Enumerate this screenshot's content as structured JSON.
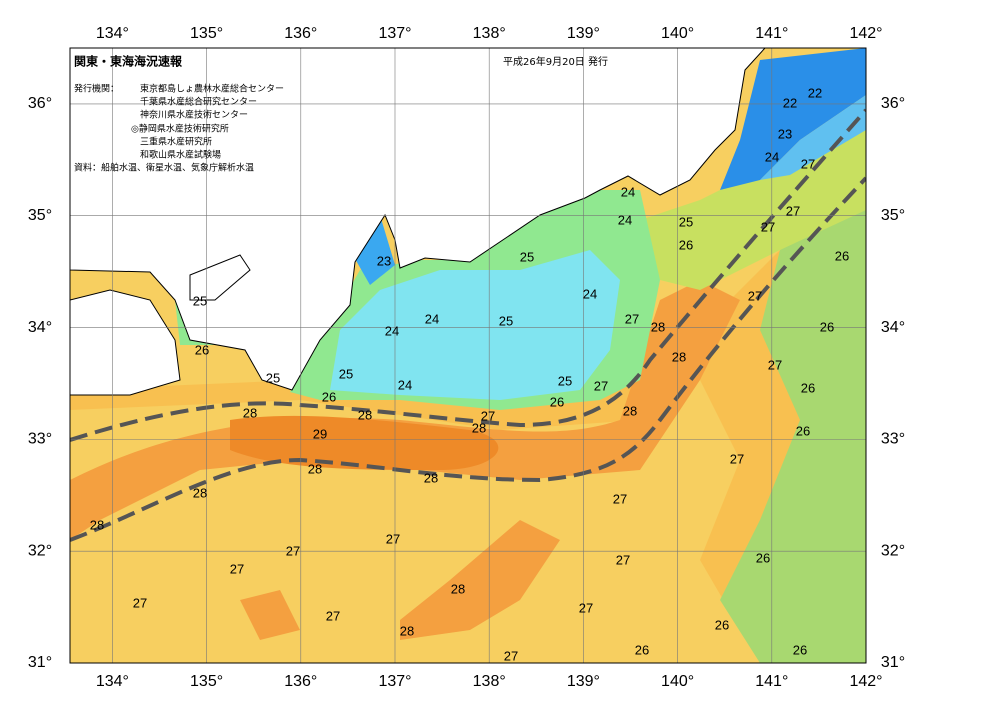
{
  "header": {
    "title": "関東・東海海況速報",
    "date": "平成26年9月20日 発行",
    "issuer_heading": "発行機関：",
    "issuers": [
      "東京都島しょ農林水産総合センター",
      "千葉県水産総合研究センター",
      "神奈川県水産技術センター",
      "◎静岡県水産技術研究所",
      "三重県水産研究所",
      "和歌山県水産試験場"
    ],
    "source": "資料：船舶水温、衛星水温、気象庁解析水温"
  },
  "map": {
    "xlim": [
      133.55,
      142
    ],
    "ylim": [
      31,
      36.5
    ],
    "xticks": [
      {
        "value": 134,
        "label": "134°"
      },
      {
        "value": 135,
        "label": "135°"
      },
      {
        "value": 136,
        "label": "136°"
      },
      {
        "value": 137,
        "label": "137°"
      },
      {
        "value": 138,
        "label": "138°"
      },
      {
        "value": 139,
        "label": "139°"
      },
      {
        "value": 140,
        "label": "140°"
      },
      {
        "value": 141,
        "label": "141°"
      },
      {
        "value": 142,
        "label": "142°"
      }
    ],
    "yticks": [
      {
        "value": 31,
        "label": "31°"
      },
      {
        "value": 32,
        "label": "32°"
      },
      {
        "value": 33,
        "label": "33°"
      },
      {
        "value": 34,
        "label": "34°"
      },
      {
        "value": 35,
        "label": "35°"
      },
      {
        "value": 36,
        "label": "36°"
      }
    ],
    "contour_labels": [
      22,
      22,
      23,
      24,
      27,
      24,
      24,
      25,
      26,
      27,
      27,
      26,
      23,
      25,
      27,
      24,
      27,
      28,
      25,
      24,
      25,
      26,
      24,
      26,
      28,
      27,
      25,
      25,
      24,
      25,
      27,
      26,
      26,
      28,
      28,
      26,
      28,
      27,
      28,
      26,
      29,
      28,
      27,
      28,
      28,
      27,
      28,
      27,
      27,
      27,
      26,
      27,
      27,
      28,
      27,
      27,
      28,
      26,
      26,
      26,
      27
    ]
  }
}
